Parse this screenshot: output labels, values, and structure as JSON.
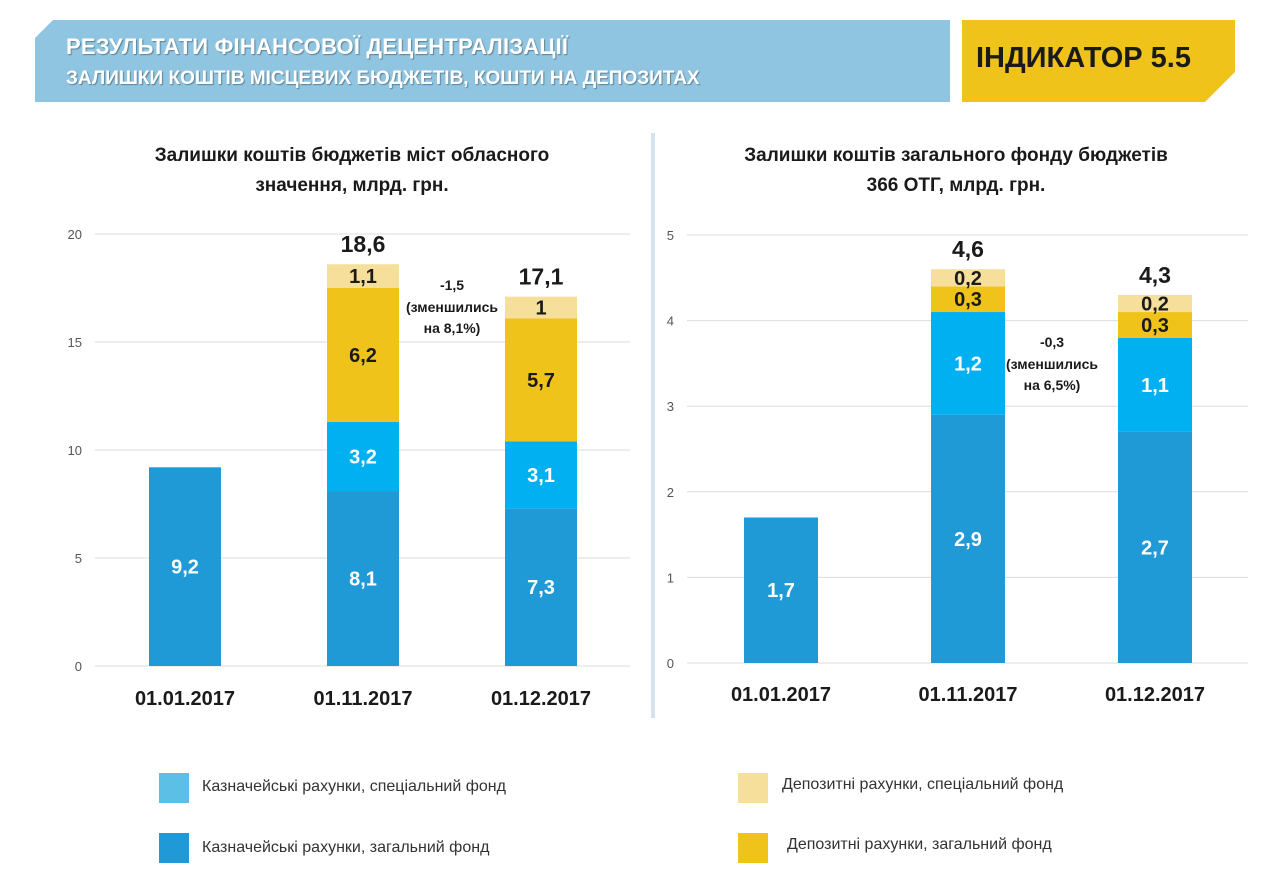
{
  "header": {
    "title": "РЕЗУЛЬТАТИ ФІНАНСОВОЇ ДЕЦЕНТРАЛІЗАЦІЇ",
    "subtitle": "ЗАЛИШКИ КОШТІВ МІСЦЕВИХ БЮДЖЕТІВ, КОШТИ НА ДЕПОЗИТАХ",
    "indicator": "ІНДИКАТОР 5.5"
  },
  "colors": {
    "treasury_general": "#1f9ad6",
    "treasury_special": "#00b0f0",
    "deposit_general": "#f0c31a",
    "deposit_special": "#f6df9a",
    "legend_treasury_special": "#5bbfe6",
    "header_bg": "#8fc5e0",
    "indicator_bg": "#f0c31a"
  },
  "chart_data": [
    {
      "type": "bar",
      "stacked": true,
      "title_line1": "Залишки коштів бюджетів міст обласного",
      "title_line2": "значення, млрд. грн.",
      "categories": [
        "01.01.2017",
        "01.11.2017",
        "01.12.2017"
      ],
      "ylim": [
        0,
        20
      ],
      "yticks": [
        "0",
        "5",
        "10",
        "15",
        "20"
      ],
      "grid": true,
      "series": [
        {
          "name": "Казначейські рахунки, загальний фонд",
          "values": [
            9.2,
            8.1,
            7.3
          ],
          "labels": [
            "9,2",
            "8,1",
            "7,3"
          ]
        },
        {
          "name": "Казначейські рахунки, спеціальний фонд",
          "values": [
            0,
            3.2,
            3.1
          ],
          "labels": [
            "",
            "3,2",
            "3,1"
          ]
        },
        {
          "name": "Депозитні рахунки, загальний фонд",
          "values": [
            0,
            6.2,
            5.7
          ],
          "labels": [
            "",
            "6,2",
            "5,7"
          ]
        },
        {
          "name": "Депозитні рахунки, спеціальний фонд",
          "values": [
            0,
            1.1,
            1.0
          ],
          "labels": [
            "",
            "1,1",
            "1"
          ]
        }
      ],
      "totals": [
        "",
        "18,6",
        "17,1"
      ],
      "annotation": [
        "-1,5",
        "(зменшились",
        "на 8,1%)"
      ]
    },
    {
      "type": "bar",
      "stacked": true,
      "title_line1": "Залишки коштів загального фонду бюджетів",
      "title_line2": "366 ОТГ, млрд. грн.",
      "categories": [
        "01.01.2017",
        "01.11.2017",
        "01.12.2017"
      ],
      "ylim": [
        0,
        5
      ],
      "yticks": [
        "0",
        "1",
        "2",
        "3",
        "4",
        "5"
      ],
      "grid": true,
      "series": [
        {
          "name": "Казначейські рахунки, загальний фонд",
          "values": [
            1.7,
            2.9,
            2.7
          ],
          "labels": [
            "1,7",
            "2,9",
            "2,7"
          ]
        },
        {
          "name": "Казначейські рахунки, спеціальний фонд",
          "values": [
            0,
            1.2,
            1.1
          ],
          "labels": [
            "",
            "1,2",
            "1,1"
          ]
        },
        {
          "name": "Депозитні рахунки, загальний фонд",
          "values": [
            0,
            0.3,
            0.3
          ],
          "labels": [
            "",
            "0,3",
            "0,3"
          ]
        },
        {
          "name": "Депозитні рахунки, спеціальний фонд",
          "values": [
            0,
            0.2,
            0.2
          ],
          "labels": [
            "",
            "0,2",
            "0,2"
          ]
        }
      ],
      "totals": [
        "",
        "4,6",
        "4,3"
      ],
      "annotation": [
        "-0,3",
        "(зменшились",
        "на 6,5%)"
      ]
    }
  ],
  "legend": {
    "treasury_special": "Казначейські рахунки, спеціальний фонд",
    "treasury_general": "Казначейські рахунки, загальний фонд",
    "deposit_special": "Депозитні рахунки, спеціальний фонд",
    "deposit_general": "Депозитні рахунки, загальний фонд"
  }
}
